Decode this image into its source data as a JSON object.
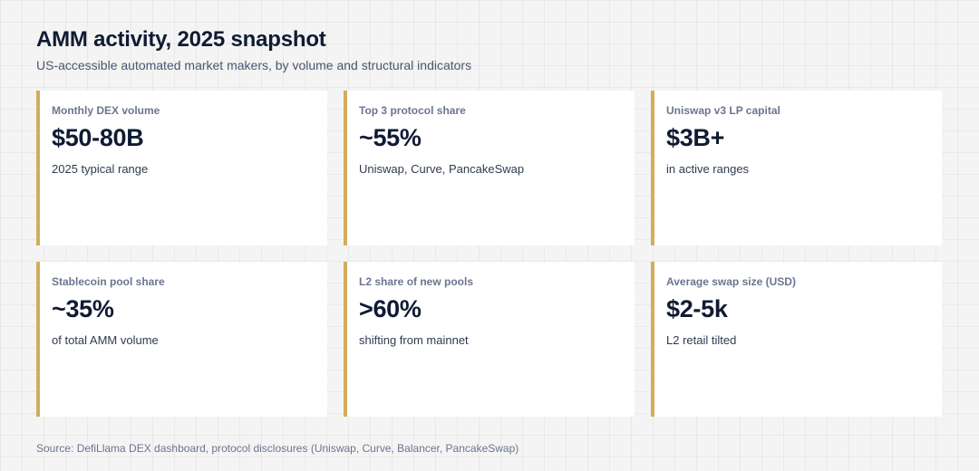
{
  "header": {
    "title": "AMM activity, 2025 snapshot",
    "subtitle": "US-accessible automated market makers, by volume and structural indicators"
  },
  "cards": [
    {
      "label": "Monthly DEX volume",
      "value": "$50-80B",
      "note": "2025 typical range"
    },
    {
      "label": "Top 3 protocol share",
      "value": "~55%",
      "note": "Uniswap, Curve, PancakeSwap"
    },
    {
      "label": "Uniswap v3 LP capital",
      "value": "$3B+",
      "note": "in active ranges"
    },
    {
      "label": "Stablecoin pool share",
      "value": "~35%",
      "note": "of total AMM volume"
    },
    {
      "label": "L2 share of new pools",
      "value": ">60%",
      "note": "shifting from mainnet"
    },
    {
      "label": "Average swap size (USD)",
      "value": "$2-5k",
      "note": "L2 retail tilted"
    }
  ],
  "footer": {
    "source": "Source: DefiLlama DEX dashboard, protocol disclosures (Uniswap, Curve, Balancer, PancakeSwap)"
  },
  "colors": {
    "accent": "#d4ac5c",
    "title": "#0f1b33",
    "muted": "#6b7590",
    "card_bg": "#ffffff",
    "page_bg": "#f4f4f4"
  }
}
